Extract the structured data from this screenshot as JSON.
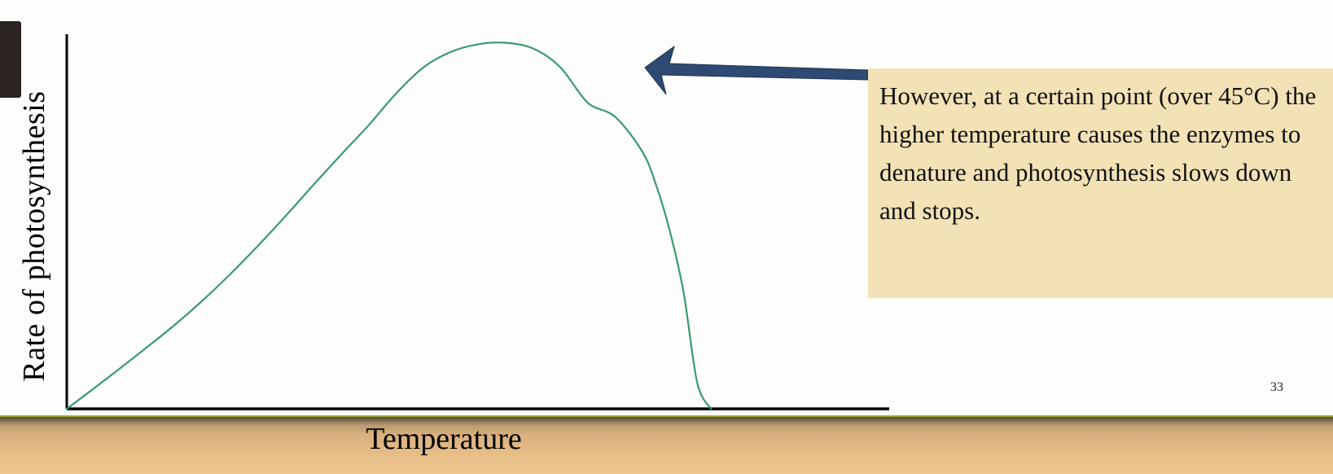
{
  "chart_data": {
    "type": "line",
    "xlabel": "Temperature",
    "ylabel": "Rate of  photosynthesis",
    "ticks": "none",
    "grid": false,
    "legend": "none",
    "series": [
      {
        "color": "#3a9a6e",
        "x": [
          0,
          2,
          4,
          6,
          8,
          10,
          12,
          14,
          16,
          18,
          20,
          22,
          24,
          26,
          28,
          30,
          32,
          34,
          36,
          38,
          40,
          42,
          43,
          44,
          45,
          46,
          47,
          48,
          49,
          50,
          51,
          52
        ],
        "y": [
          0,
          5.6,
          11.3,
          17.1,
          23.1,
          29.6,
          36.7,
          44.3,
          52.3,
          60.6,
          68.7,
          76.6,
          85.2,
          92.3,
          96.5,
          98.6,
          99.0,
          97.5,
          92.4,
          82.8,
          79.0,
          69.5,
          60.5,
          48.0,
          31.5,
          7.0,
          0,
          0,
          0,
          0,
          0,
          0
        ]
      }
    ],
    "xlim": [
      0,
      60
    ],
    "ylim": [
      0,
      100
    ]
  },
  "annotation": {
    "text": "However, at a certain point (over 45°C) the higher temperature causes the enzymes to denature and photosynthesis slows down and stops.",
    "arrow_color": "#2e4a72",
    "box_color": "#f3e2b6"
  },
  "slide": {
    "page_number": "33"
  }
}
